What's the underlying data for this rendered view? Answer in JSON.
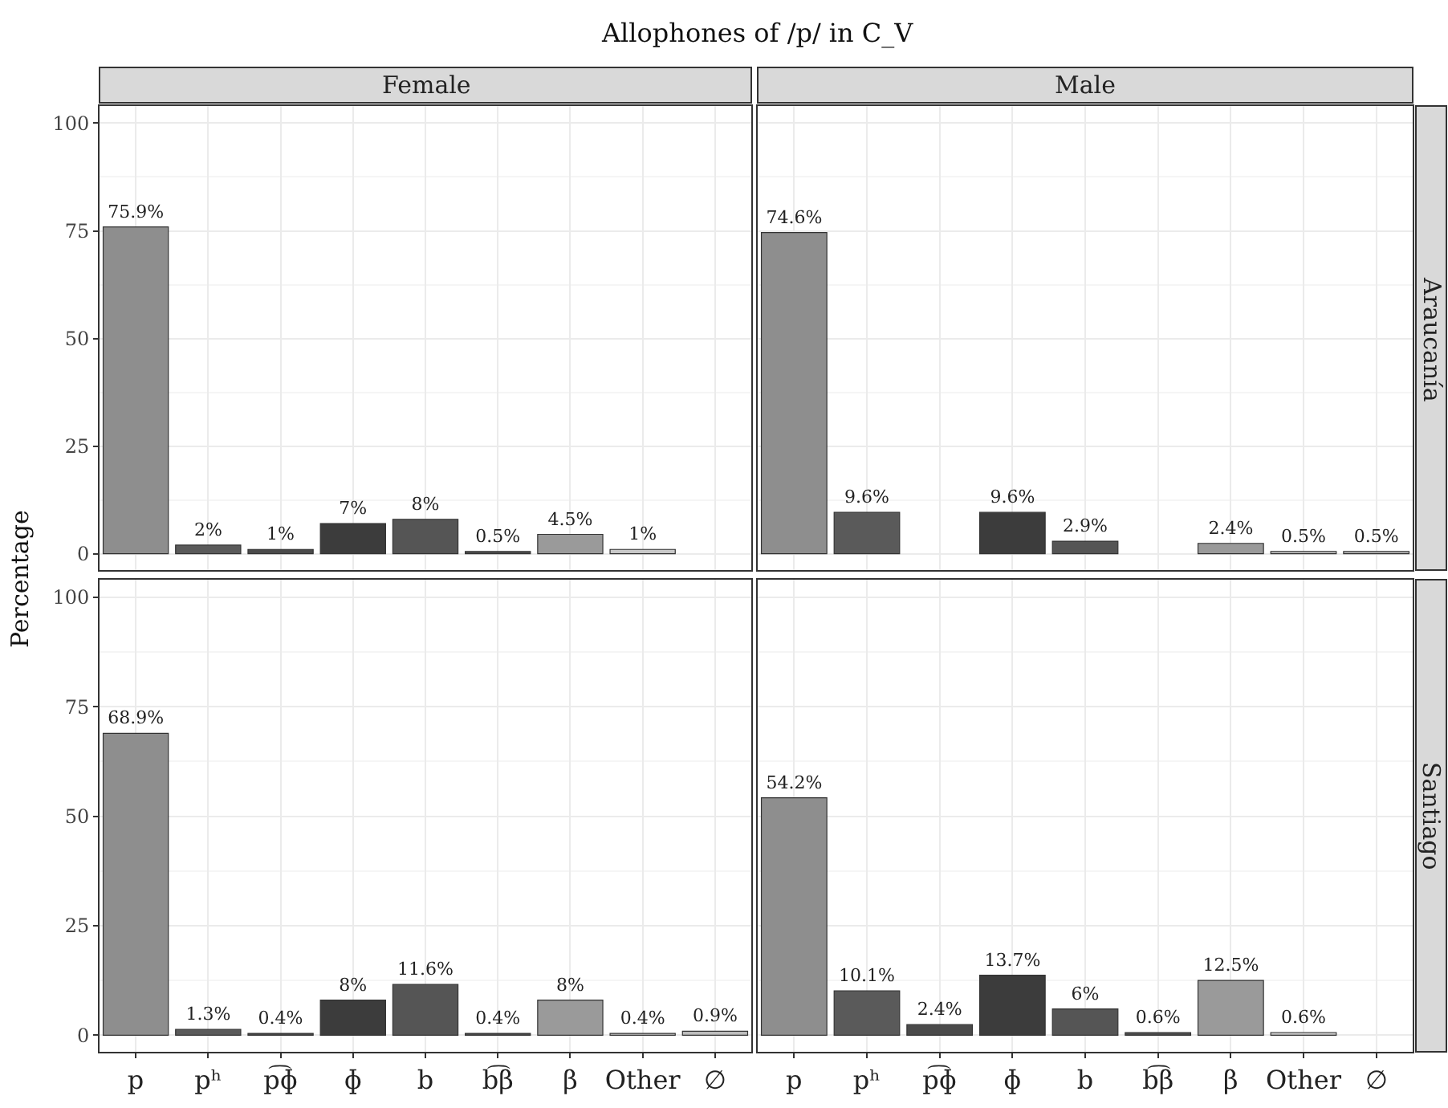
{
  "chart_data": [
    {
      "type": "bar",
      "title": "Allophones of /p/ in C_V",
      "subtitle": "Female",
      "ylabel": "Percentage",
      "categories": [
        "p",
        "pʰ",
        "p͡ɸ",
        "ɸ",
        "b",
        "b͡β",
        "β",
        "Other",
        "∅"
      ],
      "values": [
        75.9,
        2,
        1,
        7,
        8,
        0.5,
        4.5,
        1,
        null
      ],
      "value_labels": [
        "75.9%",
        "2%",
        "1%",
        "7%",
        "8%",
        "0.5%",
        "4.5%",
        "1%",
        null
      ],
      "colors": [
        "#8e8e8e",
        "#5a5a5a",
        "#4a4a4a",
        "#3c3c3c",
        "#555555",
        "#4d4d4d",
        "#9a9a9a",
        "#c8c8c8",
        "#bdbdbd"
      ],
      "ylim": [
        -3.8,
        104
      ],
      "yticks": [
        0,
        25,
        50,
        75,
        100
      ],
      "grid": true,
      "tick_labels": "y"
    },
    {
      "type": "bar",
      "subtitle": "Male",
      "annotations": [
        "Araucanía"
      ],
      "categories": [
        "p",
        "pʰ",
        "p͡ɸ",
        "ɸ",
        "b",
        "b͡β",
        "β",
        "Other",
        "∅"
      ],
      "values": [
        74.6,
        9.6,
        null,
        9.6,
        2.9,
        null,
        2.4,
        0.5,
        0.5
      ],
      "value_labels": [
        "74.6%",
        "9.6%",
        null,
        "9.6%",
        "2.9%",
        null,
        "2.4%",
        "0.5%",
        "0.5%"
      ],
      "colors": [
        "#8e8e8e",
        "#5a5a5a",
        "#4a4a4a",
        "#3c3c3c",
        "#555555",
        "#4d4d4d",
        "#9a9a9a",
        "#c8c8c8",
        "#bdbdbd"
      ],
      "ylim": [
        -3.8,
        104
      ],
      "yticks": [
        0,
        25,
        50,
        75,
        100
      ],
      "grid": true,
      "tick_labels": false
    },
    {
      "type": "bar",
      "categories": [
        "p",
        "pʰ",
        "p͡ɸ",
        "ɸ",
        "b",
        "b͡β",
        "β",
        "Other",
        "∅"
      ],
      "values": [
        68.9,
        1.3,
        0.4,
        8,
        11.6,
        0.4,
        8,
        0.4,
        0.9
      ],
      "value_labels": [
        "68.9%",
        "1.3%",
        "0.4%",
        "8%",
        "11.6%",
        "0.4%",
        "8%",
        "0.4%",
        "0.9%"
      ],
      "colors": [
        "#8e8e8e",
        "#5a5a5a",
        "#4a4a4a",
        "#3c3c3c",
        "#555555",
        "#4d4d4d",
        "#9a9a9a",
        "#c8c8c8",
        "#bdbdbd"
      ],
      "ylim": [
        -3.8,
        104
      ],
      "yticks": [
        0,
        25,
        50,
        75,
        100
      ],
      "grid": true
    },
    {
      "type": "bar",
      "annotations": [
        "Santiago"
      ],
      "categories": [
        "p",
        "pʰ",
        "p͡ɸ",
        "ɸ",
        "b",
        "b͡β",
        "β",
        "Other",
        "∅"
      ],
      "values": [
        54.2,
        10.1,
        2.4,
        13.7,
        6,
        0.6,
        12.5,
        0.6,
        null
      ],
      "value_labels": [
        "54.2%",
        "10.1%",
        "2.4%",
        "13.7%",
        "6%",
        "0.6%",
        "12.5%",
        "0.6%",
        null
      ],
      "colors": [
        "#8e8e8e",
        "#5a5a5a",
        "#4a4a4a",
        "#3c3c3c",
        "#555555",
        "#4d4d4d",
        "#9a9a9a",
        "#c8c8c8",
        "#bdbdbd"
      ],
      "ylim": [
        -3.8,
        104
      ],
      "yticks": [
        0,
        25,
        50,
        75,
        100
      ],
      "grid": true,
      "tick_labels": "x"
    }
  ]
}
